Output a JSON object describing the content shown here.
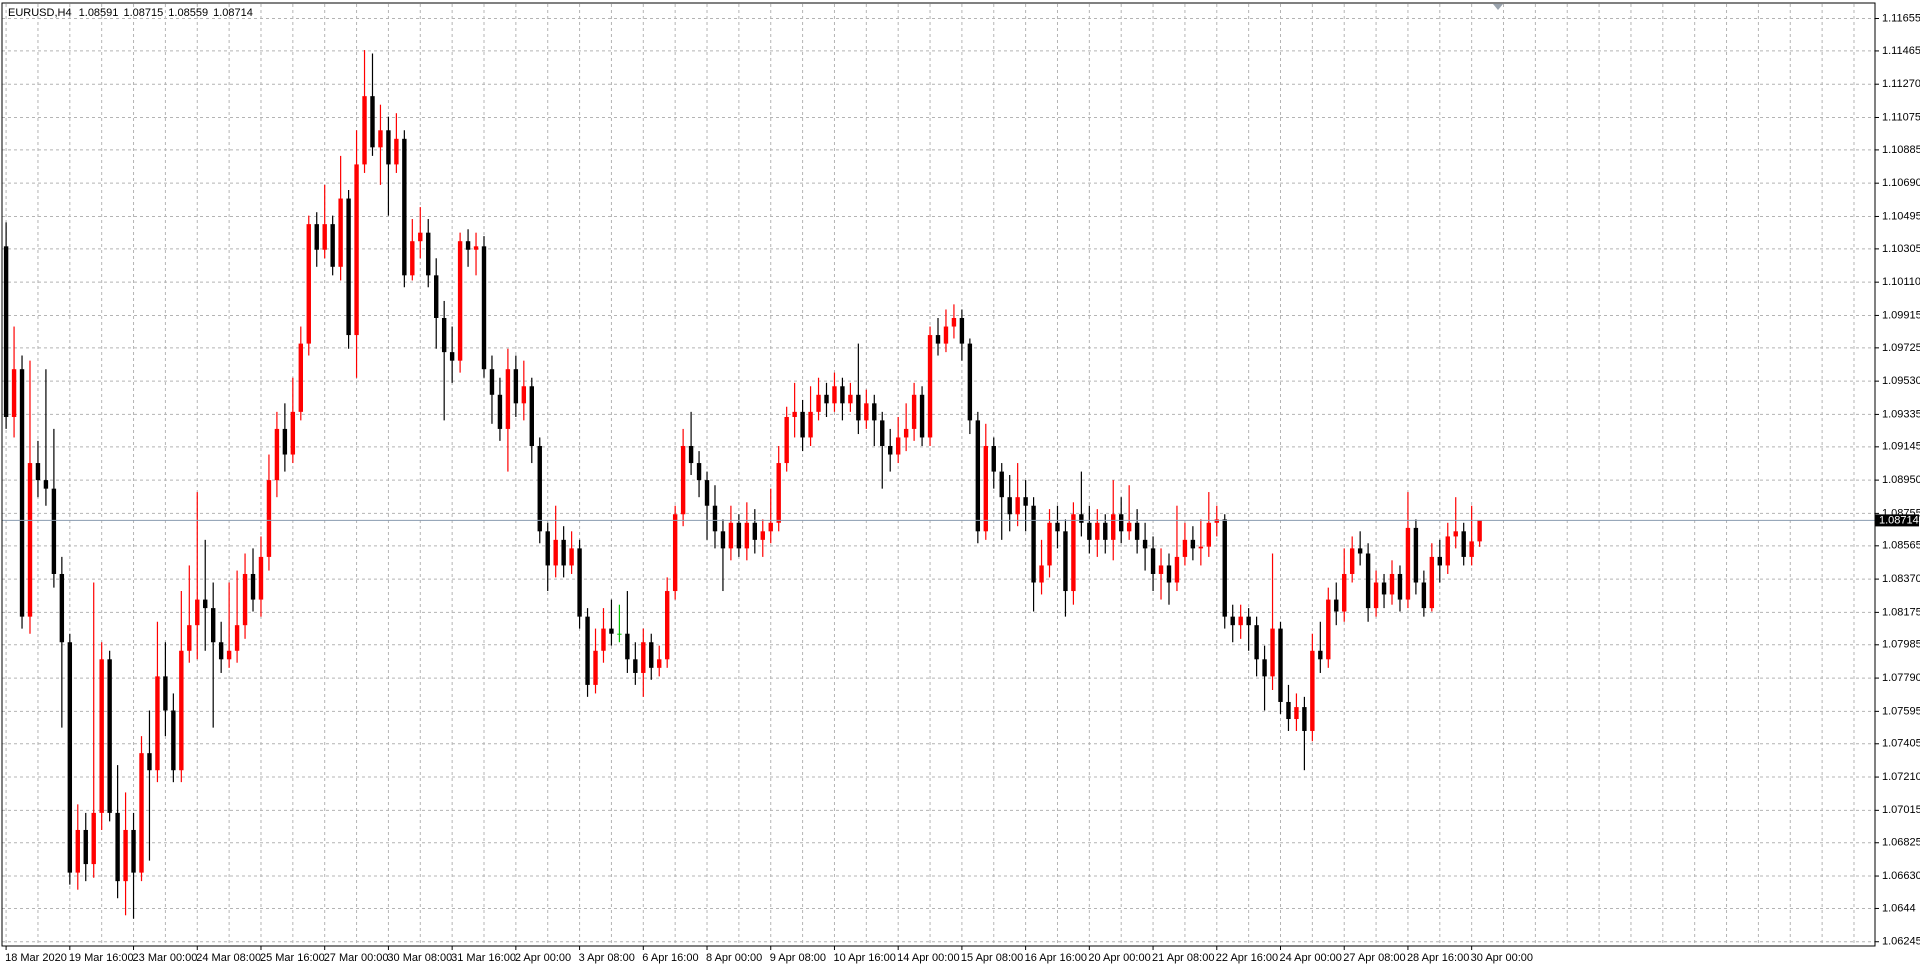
{
  "chart_data": {
    "type": "candlestick",
    "title": "EURUSD,H4",
    "categories": [
      "18 Mar 2020",
      null,
      null,
      null,
      null,
      null,
      null,
      null,
      "19 Mar 16:00",
      null,
      null,
      null,
      null,
      null,
      null,
      null,
      "23 Mar 00:00",
      null,
      null,
      null,
      null,
      null,
      null,
      null,
      "24 Mar 08:00",
      null,
      null,
      null,
      null,
      null,
      null,
      null,
      "25 Mar 16:00",
      null,
      null,
      null,
      null,
      null,
      null,
      null,
      "27 Mar 00:00",
      null,
      null,
      null,
      null,
      null,
      null,
      null,
      "30 Mar 08:00",
      null,
      null,
      null,
      null,
      null,
      null,
      null,
      "31 Mar 16:00",
      null,
      null,
      null,
      null,
      null,
      null,
      null,
      "2 Apr 00:00",
      null,
      null,
      null,
      null,
      null,
      null,
      null,
      "3 Apr 08:00",
      null,
      null,
      null,
      null,
      null,
      null,
      null,
      "6 Apr 16:00",
      null,
      null,
      null,
      null,
      null,
      null,
      null,
      "8 Apr 00:00",
      null,
      null,
      null,
      null,
      null,
      null,
      null,
      "9 Apr 08:00",
      null,
      null,
      null,
      null,
      null,
      null,
      null,
      "10 Apr 16:00",
      null,
      null,
      null,
      null,
      null,
      null,
      null,
      "14 Apr 00:00",
      null,
      null,
      null,
      null,
      null,
      null,
      null,
      "15 Apr 08:00",
      null,
      null,
      null,
      null,
      null,
      null,
      null,
      "16 Apr 16:00",
      null,
      null,
      null,
      null,
      null,
      null,
      null,
      "20 Apr 00:00",
      null,
      null,
      null,
      null,
      null,
      null,
      null,
      "21 Apr 08:00",
      null,
      null,
      null,
      null,
      null,
      null,
      null,
      "22 Apr 16:00",
      null,
      null,
      null,
      null,
      null,
      null,
      null,
      "24 Apr 00:00",
      null,
      null,
      null,
      null,
      null,
      null,
      null,
      "27 Apr 08:00",
      null,
      null,
      null,
      null,
      null,
      null,
      null,
      "28 Apr 16:00",
      null,
      null,
      null,
      null,
      null,
      null,
      null,
      "30 Apr 00:00",
      null
    ],
    "open": [
      1.1032,
      1.0932,
      1.096,
      1.0815,
      1.0905,
      1.0895,
      1.089,
      1.084,
      1.08,
      1.0665,
      1.069,
      1.067,
      1.07,
      1.079,
      1.07,
      1.066,
      1.069,
      1.0665,
      1.0735,
      1.0725,
      1.078,
      1.076,
      1.0725,
      1.0795,
      1.081,
      1.0825,
      1.082,
      1.08,
      1.079,
      1.0795,
      1.081,
      1.084,
      1.0825,
      1.085,
      1.0895,
      1.0925,
      1.091,
      1.0935,
      1.0975,
      1.1045,
      1.103,
      1.1045,
      1.102,
      1.106,
      1.098,
      1.108,
      1.112,
      1.109,
      1.11,
      1.108,
      1.1095,
      1.1015,
      1.1035,
      1.104,
      1.1015,
      1.099,
      1.097,
      1.0965,
      1.1035,
      1.103,
      1.1032,
      1.096,
      1.0945,
      1.0925,
      1.096,
      1.094,
      1.095,
      1.0915,
      1.0865,
      1.0845,
      1.086,
      1.0845,
      1.0855,
      1.0815,
      1.0775,
      1.0795,
      1.0808,
      1.0805,
      1.0805,
      1.079,
      1.0782,
      1.08,
      1.0785,
      1.079,
      1.083,
      1.0875,
      1.0915,
      1.0905,
      1.0895,
      1.088,
      1.0865,
      1.0855,
      1.087,
      1.0855,
      1.087,
      1.086,
      1.0865,
      1.087,
      1.0905,
      1.0932,
      1.0935,
      1.092,
      1.0935,
      1.0945,
      1.094,
      1.095,
      1.094,
      1.0945,
      1.093,
      1.094,
      1.093,
      1.0915,
      1.091,
      1.092,
      1.0925,
      1.0945,
      1.092,
      1.098,
      1.0975,
      1.0985,
      1.099,
      1.0975,
      1.093,
      1.0865,
      1.0915,
      1.09,
      1.0885,
      1.0875,
      1.0885,
      1.088,
      1.0835,
      1.0845,
      1.087,
      1.0865,
      1.083,
      1.0875,
      1.087,
      1.086,
      1.087,
      1.086,
      1.0875,
      1.0865,
      1.087,
      1.086,
      1.0855,
      1.084,
      1.0845,
      1.0835,
      1.085,
      1.086,
      1.0855,
      1.0856,
      1.087,
      1.0872,
      1.0815,
      1.081,
      1.0815,
      1.081,
      1.079,
      1.078,
      1.0808,
      1.0765,
      1.0755,
      1.0762,
      1.0748,
      1.0795,
      1.079,
      1.0825,
      1.0818,
      1.084,
      1.0855,
      1.0852,
      1.082,
      1.0835,
      1.0828,
      1.084,
      1.0825,
      1.0867,
      1.0835,
      1.082,
      1.085,
      1.0845,
      1.0862,
      1.0865,
      1.085,
      1.08591
    ],
    "high": [
      1.1046,
      1.0985,
      1.0968,
      1.0965,
      1.0918,
      1.096,
      1.0925,
      1.085,
      1.0805,
      1.0705,
      1.07,
      1.0835,
      1.08,
      1.0795,
      1.0728,
      1.0712,
      1.07,
      1.0745,
      1.076,
      1.0812,
      1.08,
      1.077,
      1.083,
      1.0845,
      1.0888,
      1.086,
      1.0835,
      1.0812,
      1.0835,
      1.0842,
      1.0852,
      1.0855,
      1.0862,
      1.091,
      1.0935,
      1.094,
      1.0955,
      1.0985,
      1.105,
      1.1052,
      1.1068,
      1.105,
      1.1085,
      1.1065,
      1.11,
      1.1147,
      1.1145,
      1.1115,
      1.1108,
      1.111,
      1.11,
      1.1048,
      1.1055,
      1.1048,
      1.1025,
      1.1,
      1.0985,
      1.104,
      1.1042,
      1.104,
      1.1038,
      1.0968,
      1.0955,
      1.0972,
      1.0968,
      1.0965,
      1.0955,
      1.092,
      1.087,
      1.088,
      1.0868,
      1.0865,
      1.086,
      1.082,
      1.0808,
      1.082,
      1.0825,
      1.0822,
      1.083,
      1.08,
      1.0808,
      1.0805,
      1.0798,
      1.0838,
      1.088,
      1.0925,
      1.0935,
      1.0912,
      1.09,
      1.0892,
      1.0872,
      1.088,
      1.0875,
      1.0882,
      1.0878,
      1.0872,
      1.089,
      1.0915,
      1.0938,
      1.0952,
      1.0942,
      1.095,
      1.0955,
      1.0952,
      1.0958,
      1.0955,
      1.0952,
      1.0975,
      1.0948,
      1.0945,
      1.0935,
      1.0925,
      1.0932,
      1.094,
      1.0952,
      1.095,
      1.0985,
      1.099,
      1.0995,
      1.0998,
      1.0995,
      1.0978,
      1.0935,
      1.0928,
      1.092,
      1.0905,
      1.0898,
      1.0905,
      1.0895,
      1.0885,
      1.086,
      1.0878,
      1.088,
      1.0872,
      1.0882,
      1.09,
      1.088,
      1.0878,
      1.0875,
      1.0895,
      1.0885,
      1.0892,
      1.0878,
      1.087,
      1.0862,
      1.0855,
      1.0852,
      1.088,
      1.087,
      1.0868,
      1.0872,
      1.0888,
      1.088,
      1.0875,
      1.0822,
      1.0822,
      1.082,
      1.0815,
      1.0798,
      1.0852,
      1.0812,
      1.0775,
      1.077,
      1.0768,
      1.0805,
      1.0812,
      1.0832,
      1.0835,
      1.0855,
      1.0862,
      1.0865,
      1.0858,
      1.0842,
      1.084,
      1.0848,
      1.0845,
      1.0888,
      1.0872,
      1.0842,
      1.0858,
      1.086,
      1.087,
      1.0885,
      1.087,
      1.088,
      1.08715
    ],
    "low": [
      1.0925,
      1.092,
      1.0808,
      1.0805,
      1.0885,
      1.088,
      1.0832,
      1.075,
      1.0658,
      1.0655,
      1.066,
      1.0662,
      1.069,
      1.0695,
      1.065,
      1.064,
      1.0638,
      1.066,
      1.0672,
      1.0718,
      1.0745,
      1.0718,
      1.0718,
      1.0788,
      1.079,
      1.0795,
      1.075,
      1.0782,
      1.0785,
      1.0788,
      1.0802,
      1.0818,
      1.0815,
      1.0842,
      1.0885,
      1.09,
      1.0905,
      1.093,
      1.0968,
      1.102,
      1.1025,
      1.1015,
      1.1012,
      1.0972,
      1.0955,
      1.1075,
      1.1085,
      1.1068,
      1.105,
      1.1075,
      1.1008,
      1.1012,
      1.1025,
      1.1008,
      1.0972,
      1.093,
      1.0952,
      1.0958,
      1.102,
      1.1015,
      1.0955,
      1.0928,
      1.0918,
      1.09,
      1.0932,
      1.093,
      1.0905,
      1.0858,
      1.083,
      1.0838,
      1.0838,
      1.084,
      1.0808,
      1.0768,
      1.077,
      1.0788,
      1.0798,
      1.08,
      1.0782,
      1.0775,
      1.0768,
      1.0778,
      1.078,
      1.0785,
      1.0825,
      1.0868,
      1.0898,
      1.0885,
      1.086,
      1.0855,
      1.083,
      1.0848,
      1.085,
      1.0848,
      1.0852,
      1.085,
      1.0858,
      1.0865,
      1.09,
      1.092,
      1.0912,
      1.0915,
      1.093,
      1.0932,
      1.0935,
      1.093,
      1.0935,
      1.0922,
      1.0925,
      1.0915,
      1.089,
      1.09,
      1.0905,
      1.0912,
      1.0918,
      1.0915,
      1.0915,
      1.0968,
      1.097,
      1.0978,
      1.0965,
      1.0922,
      1.0858,
      1.086,
      1.089,
      1.086,
      1.0865,
      1.0868,
      1.0865,
      1.0818,
      1.0828,
      1.0838,
      1.0855,
      1.0815,
      1.0822,
      1.0862,
      1.0852,
      1.085,
      1.0852,
      1.0848,
      1.0858,
      1.086,
      1.0852,
      1.0842,
      1.083,
      1.0825,
      1.0822,
      1.083,
      1.0845,
      1.0848,
      1.0845,
      1.085,
      1.0862,
      1.0808,
      1.08,
      1.0802,
      1.0795,
      1.078,
      1.076,
      1.0772,
      1.0758,
      1.0748,
      1.0748,
      1.0725,
      1.0742,
      1.0782,
      1.0785,
      1.081,
      1.0812,
      1.0835,
      1.0845,
      1.0812,
      1.0815,
      1.082,
      1.0822,
      1.0818,
      1.082,
      1.0828,
      1.0815,
      1.0818,
      1.0835,
      1.084,
      1.0855,
      1.0845,
      1.0845,
      1.08559
    ],
    "close": [
      1.0932,
      1.096,
      1.0815,
      1.0905,
      1.0895,
      1.089,
      1.084,
      1.08,
      1.0665,
      1.069,
      1.067,
      1.07,
      1.079,
      1.07,
      1.066,
      1.069,
      1.0665,
      1.0735,
      1.0725,
      1.078,
      1.076,
      1.0725,
      1.0795,
      1.081,
      1.0825,
      1.082,
      1.08,
      1.079,
      1.0795,
      1.081,
      1.084,
      1.0825,
      1.085,
      1.0895,
      1.0925,
      1.091,
      1.0935,
      1.0975,
      1.1045,
      1.103,
      1.1045,
      1.102,
      1.106,
      1.098,
      1.108,
      1.112,
      1.109,
      1.11,
      1.108,
      1.1095,
      1.1015,
      1.1035,
      1.104,
      1.1015,
      1.099,
      1.097,
      1.0965,
      1.1035,
      1.103,
      1.1032,
      1.096,
      1.0945,
      1.0925,
      1.096,
      1.094,
      1.095,
      1.0915,
      1.0865,
      1.0845,
      1.086,
      1.0845,
      1.0855,
      1.0815,
      1.0775,
      1.0795,
      1.0808,
      1.0805,
      1.0805,
      1.079,
      1.0782,
      1.08,
      1.0785,
      1.079,
      1.083,
      1.0875,
      1.0915,
      1.0905,
      1.0895,
      1.088,
      1.0865,
      1.0855,
      1.087,
      1.0855,
      1.087,
      1.086,
      1.0865,
      1.087,
      1.0905,
      1.0932,
      1.0935,
      1.092,
      1.0935,
      1.0945,
      1.094,
      1.095,
      1.094,
      1.0945,
      1.093,
      1.094,
      1.093,
      1.0915,
      1.091,
      1.092,
      1.0925,
      1.0945,
      1.092,
      1.098,
      1.0975,
      1.0985,
      1.099,
      1.0975,
      1.093,
      1.0865,
      1.0915,
      1.09,
      1.0885,
      1.0875,
      1.0885,
      1.088,
      1.0835,
      1.0845,
      1.087,
      1.0865,
      1.083,
      1.0875,
      1.087,
      1.086,
      1.087,
      1.086,
      1.0875,
      1.0865,
      1.087,
      1.086,
      1.0855,
      1.084,
      1.0845,
      1.0835,
      1.085,
      1.086,
      1.0855,
      1.0856,
      1.087,
      1.0872,
      1.0815,
      1.081,
      1.0815,
      1.081,
      1.079,
      1.078,
      1.0808,
      1.0765,
      1.0755,
      1.0762,
      1.0748,
      1.0795,
      1.079,
      1.0825,
      1.0818,
      1.084,
      1.0855,
      1.0852,
      1.082,
      1.0835,
      1.0828,
      1.084,
      1.0825,
      1.0867,
      1.0835,
      1.082,
      1.085,
      1.0845,
      1.0862,
      1.0865,
      1.085,
      1.08591,
      1.08714
    ],
    "ylim": [
      1.0622,
      1.1174
    ],
    "yticks": [
      1.11655,
      1.11465,
      {
        "value": 1.1127,
        "label": "1.11270"
      },
      1.11075,
      1.10885,
      {
        "value": 1.1069,
        "label": "1.10690"
      },
      1.10495,
      1.10305,
      {
        "value": 1.1011,
        "label": "1.10110"
      },
      1.09915,
      1.09725,
      {
        "value": 1.0953,
        "label": "1.09530"
      },
      1.09335,
      1.09145,
      {
        "value": 1.0895,
        "label": "1.08950"
      },
      1.08755,
      1.08565,
      {
        "value": 1.0837,
        "label": "1.08370"
      },
      1.08175,
      1.07985,
      {
        "value": 1.0779,
        "label": "1.07790"
      },
      1.07595,
      1.07405,
      {
        "value": 1.0721,
        "label": "1.07210"
      },
      1.07015,
      1.06825,
      {
        "value": 1.0663,
        "label": "1.06630"
      },
      1.0644,
      {
        "value": 1.06245,
        "label": "1.06245"
      }
    ],
    "grid": true,
    "up_color": "#ff0000",
    "down_color": "#000000",
    "doji_color": "#00c000",
    "grid_color": "#b4b4b4"
  }
}
